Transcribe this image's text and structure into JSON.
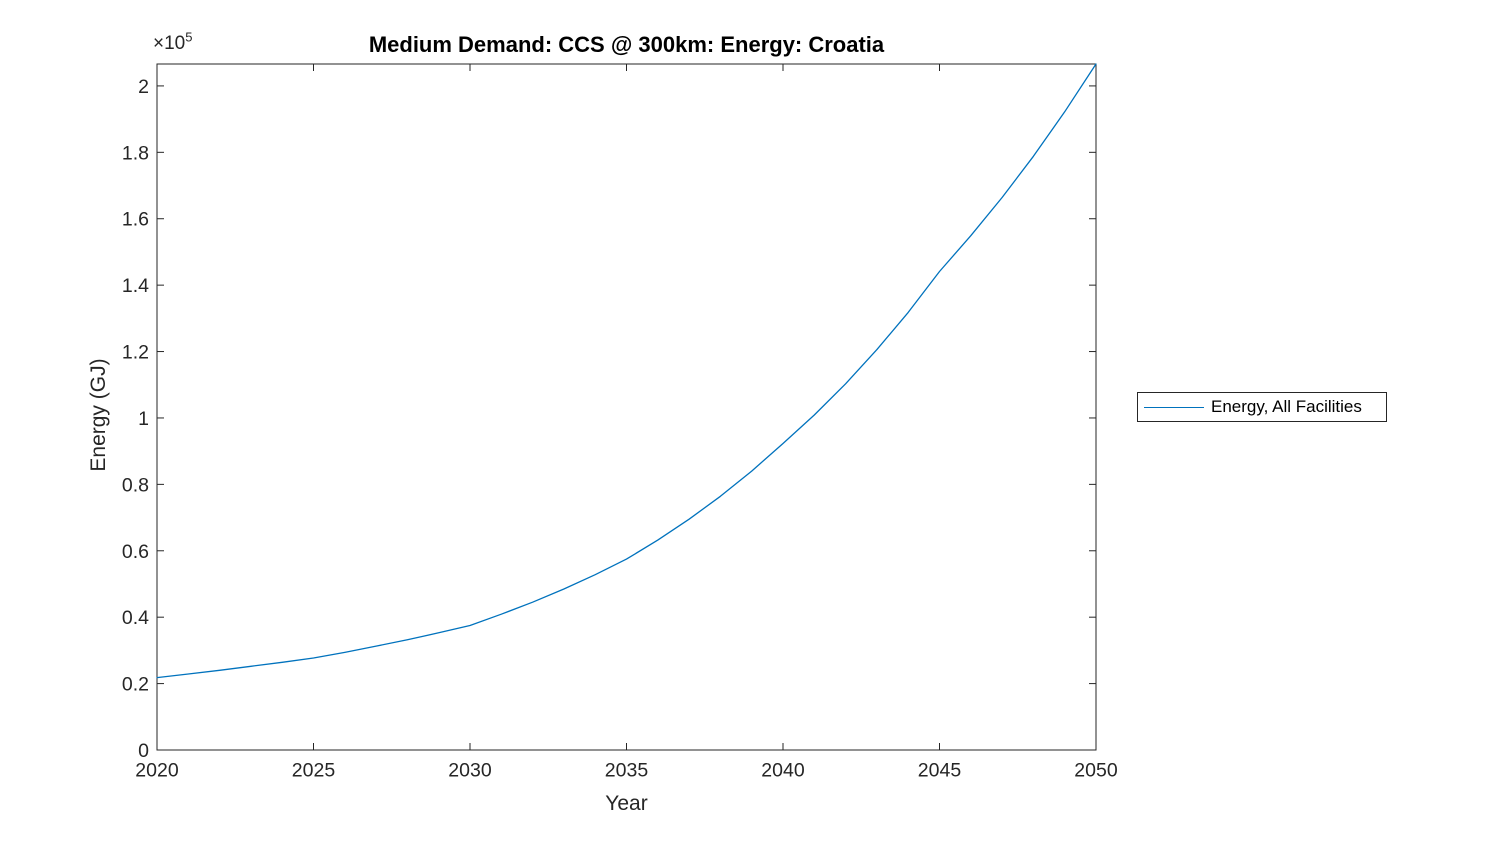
{
  "figure": {
    "background": "#ffffff",
    "axis_color": "#262626",
    "tick_label_color": "#262626"
  },
  "chart_data": {
    "type": "line",
    "title": "Medium Demand: CCS @ 300km: Energy: Croatia",
    "xlabel": "Year",
    "ylabel": "Energy (GJ)",
    "unit": "GJ",
    "y_axis_multiplier": {
      "base": "×10",
      "exp": "5"
    },
    "grid": false,
    "xlim": [
      2020,
      2050
    ],
    "ylim": [
      0,
      206600
    ],
    "xticks": [
      2020,
      2025,
      2030,
      2035,
      2040,
      2045,
      2050
    ],
    "xtick_labels": [
      "2020",
      "2025",
      "2030",
      "2035",
      "2040",
      "2045",
      "2050"
    ],
    "yticks": [
      0,
      20000,
      40000,
      60000,
      80000,
      100000,
      120000,
      140000,
      160000,
      180000,
      200000
    ],
    "ytick_labels": [
      "0",
      "0.2",
      "0.4",
      "0.6",
      "0.8",
      "1",
      "1.2",
      "1.4",
      "1.6",
      "1.8",
      "2"
    ],
    "x": [
      2020,
      2021,
      2022,
      2023,
      2024,
      2025,
      2026,
      2027,
      2028,
      2029,
      2030,
      2031,
      2032,
      2033,
      2034,
      2035,
      2036,
      2037,
      2038,
      2039,
      2040,
      2041,
      2042,
      2043,
      2044,
      2045,
      2046,
      2047,
      2048,
      2049,
      2050
    ],
    "series": [
      {
        "name": "Energy, All Facilities",
        "color": "#0072BD",
        "values": [
          21800,
          22900,
          24000,
          25200,
          26400,
          27700,
          29400,
          31300,
          33200,
          35300,
          37500,
          40900,
          44500,
          48500,
          52800,
          57500,
          63200,
          69500,
          76400,
          84000,
          92300,
          100900,
          110300,
          120600,
          131800,
          144100,
          154900,
          166400,
          178800,
          192200,
          206600
        ]
      }
    ],
    "legend": {
      "position": "right-outside",
      "entries": [
        "Energy, All Facilities"
      ]
    }
  }
}
